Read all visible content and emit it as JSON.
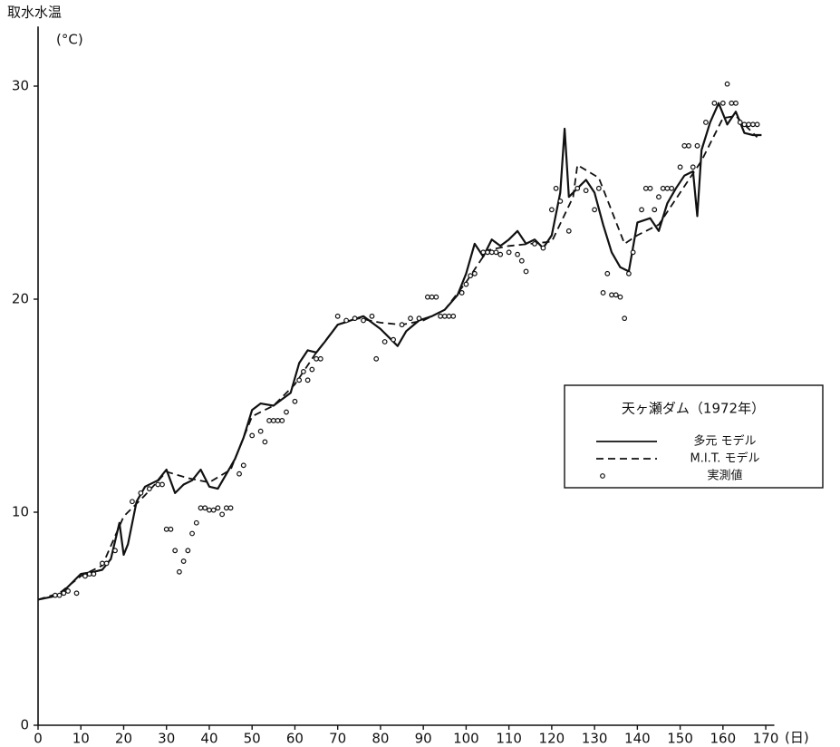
{
  "chart_data": {
    "type": "line",
    "y_label": "取水水温",
    "y_unit": "(°C)",
    "x_unit": "(日)",
    "legend_title": "天ヶ瀬ダム（1972年）",
    "xlim": [
      0,
      172
    ],
    "ylim": [
      0,
      32.8
    ],
    "xticks": [
      0,
      10,
      20,
      30,
      40,
      50,
      60,
      70,
      80,
      90,
      100,
      110,
      120,
      130,
      140,
      150,
      160,
      170
    ],
    "yticks": [
      0,
      10,
      20,
      30
    ],
    "grid": false,
    "legend": "right",
    "series": [
      {
        "name": "多元 モデル",
        "color": "#111111",
        "style": "solid",
        "x": [
          0,
          5,
          8,
          10,
          13,
          15,
          17,
          19,
          20,
          21,
          23,
          25,
          28,
          30,
          32,
          34,
          36,
          38,
          40,
          42,
          44,
          46,
          48,
          50,
          52,
          55,
          57,
          59,
          61,
          63,
          65,
          67,
          70,
          73,
          76,
          80,
          82,
          84,
          86,
          89,
          92,
          95,
          98,
          100,
          102,
          104,
          106,
          108,
          110,
          112,
          114,
          116,
          118,
          120,
          122,
          123,
          124,
          126,
          128,
          130,
          132,
          134,
          136,
          138,
          140,
          143,
          145,
          147,
          149,
          151,
          153,
          154,
          155,
          157,
          159,
          161,
          163,
          165,
          167,
          169
        ],
        "values": [
          5.9,
          6.1,
          6.7,
          7.1,
          7.2,
          7.3,
          7.8,
          9.5,
          8.0,
          8.5,
          10.5,
          11.2,
          11.5,
          12.0,
          10.9,
          11.3,
          11.5,
          12.0,
          11.2,
          11.1,
          11.8,
          12.5,
          13.5,
          14.8,
          15.1,
          15.0,
          15.3,
          15.6,
          17.0,
          17.6,
          17.5,
          18.0,
          18.8,
          19.0,
          19.2,
          18.6,
          18.2,
          17.8,
          18.5,
          19.0,
          19.2,
          19.5,
          20.2,
          21.2,
          22.6,
          22.0,
          22.8,
          22.5,
          22.8,
          23.2,
          22.6,
          22.8,
          22.4,
          23.0,
          25.0,
          28.0,
          24.8,
          25.2,
          25.6,
          25.0,
          23.5,
          22.2,
          21.5,
          21.3,
          23.6,
          23.8,
          23.2,
          24.5,
          25.2,
          25.8,
          26.0,
          23.9,
          27.0,
          28.3,
          29.2,
          28.2,
          28.8,
          27.8,
          27.7,
          27.7
        ]
      },
      {
        "name": "M.I.T. モデル",
        "color": "#111111",
        "style": "dashed",
        "x": [
          0,
          5,
          10,
          15,
          20,
          25,
          30,
          35,
          40,
          45,
          50,
          55,
          60,
          65,
          70,
          75,
          80,
          85,
          90,
          95,
          100,
          105,
          110,
          115,
          120,
          125,
          126,
          131,
          137,
          140,
          145,
          150,
          155,
          160,
          163,
          168
        ],
        "values": [
          5.9,
          6.2,
          7.0,
          7.5,
          9.8,
          10.8,
          11.9,
          11.6,
          11.4,
          12.0,
          14.5,
          15.0,
          16.0,
          17.5,
          18.8,
          19.1,
          18.9,
          18.8,
          19.0,
          19.5,
          20.8,
          22.3,
          22.5,
          22.6,
          22.7,
          24.8,
          26.3,
          25.7,
          22.6,
          23.0,
          23.5,
          25.0,
          26.5,
          28.5,
          28.6,
          27.6
        ]
      },
      {
        "name": "実測値",
        "color": "#111111",
        "style": "markers",
        "x": [
          4,
          5,
          6,
          7,
          9,
          11,
          12,
          13,
          15,
          16,
          18,
          22,
          24,
          26,
          28,
          29,
          30,
          31,
          32,
          33,
          34,
          35,
          36,
          37,
          38,
          39,
          40,
          41,
          42,
          43,
          44,
          45,
          47,
          48,
          50,
          52,
          53,
          54,
          55,
          56,
          57,
          58,
          60,
          61,
          62,
          63,
          64,
          65,
          66,
          70,
          72,
          74,
          76,
          78,
          79,
          81,
          83,
          85,
          87,
          89,
          91,
          92,
          93,
          94,
          95,
          96,
          97,
          99,
          100,
          101,
          102,
          104,
          105,
          106,
          107,
          108,
          110,
          112,
          113,
          114,
          116,
          118,
          120,
          121,
          122,
          124,
          126,
          128,
          130,
          131,
          132,
          133,
          134,
          135,
          136,
          137,
          138,
          139,
          141,
          142,
          143,
          144,
          145,
          146,
          147,
          148,
          150,
          151,
          152,
          153,
          154,
          156,
          158,
          160,
          161,
          162,
          163,
          164,
          165,
          166,
          167,
          168
        ],
        "values": [
          6.1,
          6.1,
          6.2,
          6.3,
          6.2,
          7.0,
          7.1,
          7.1,
          7.6,
          7.6,
          8.2,
          10.5,
          10.9,
          11.1,
          11.3,
          11.3,
          9.2,
          9.2,
          8.2,
          7.2,
          7.7,
          8.2,
          9.0,
          9.5,
          10.2,
          10.2,
          10.1,
          10.1,
          10.2,
          9.9,
          10.2,
          10.2,
          11.8,
          12.2,
          13.6,
          13.8,
          13.3,
          14.3,
          14.3,
          14.3,
          14.3,
          14.7,
          15.2,
          16.2,
          16.6,
          16.2,
          16.7,
          17.2,
          17.2,
          19.2,
          19.0,
          19.1,
          19.0,
          19.2,
          17.2,
          18.0,
          18.1,
          18.8,
          19.1,
          19.1,
          20.1,
          20.1,
          20.1,
          19.2,
          19.2,
          19.2,
          19.2,
          20.3,
          20.7,
          21.1,
          21.2,
          22.2,
          22.2,
          22.2,
          22.2,
          22.1,
          22.2,
          22.1,
          21.8,
          21.3,
          22.6,
          22.4,
          24.2,
          25.2,
          24.6,
          23.2,
          25.2,
          25.1,
          24.2,
          25.2,
          20.3,
          21.2,
          20.2,
          20.2,
          20.1,
          19.1,
          21.2,
          22.2,
          24.2,
          25.2,
          25.2,
          24.2,
          24.8,
          25.2,
          25.2,
          25.2,
          26.2,
          27.2,
          27.2,
          26.2,
          27.2,
          28.3,
          29.2,
          29.2,
          30.1,
          29.2,
          29.2,
          28.3,
          28.2,
          28.2,
          28.2,
          28.2
        ]
      }
    ]
  }
}
